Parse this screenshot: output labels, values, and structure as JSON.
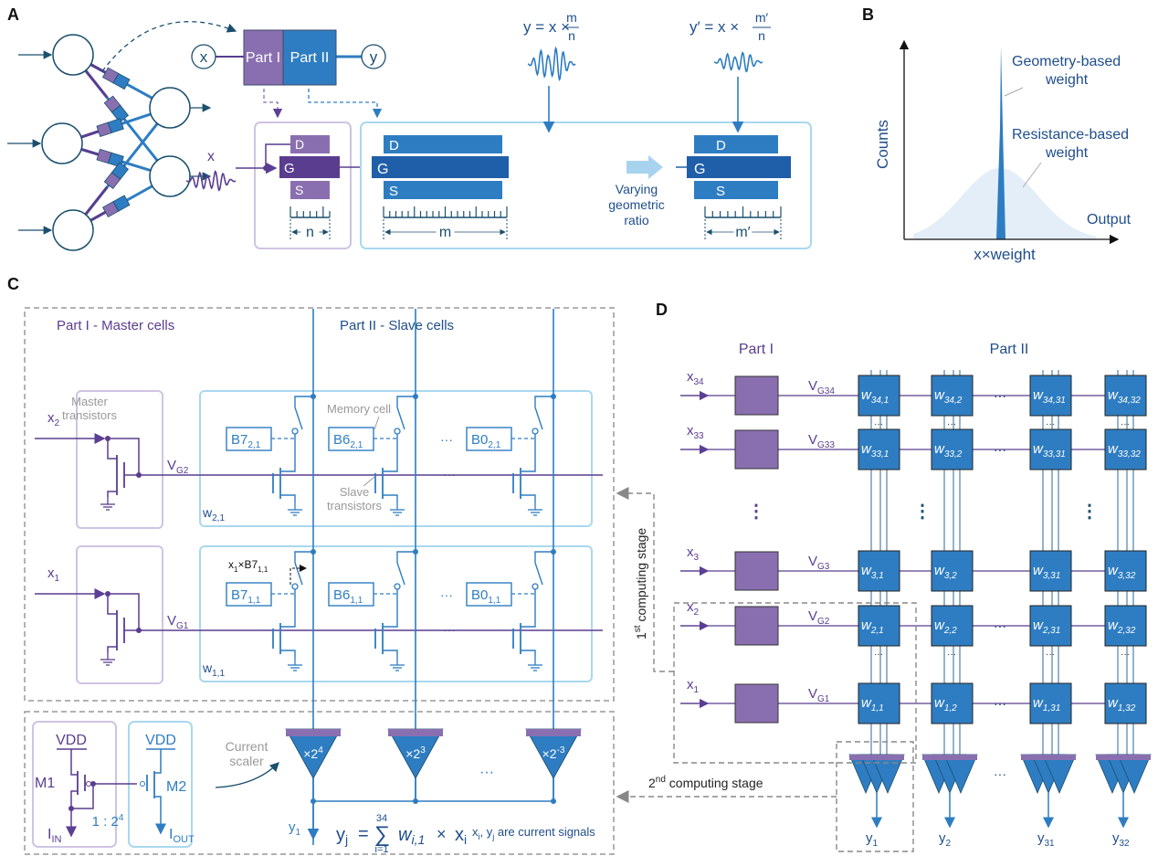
{
  "panel_labels": {
    "a": "A",
    "b": "B",
    "c": "C",
    "d": "D"
  },
  "colors": {
    "part1": "#8a6fb0",
    "part1_dark": "#5a3d8f",
    "part2": "#2e7dc2",
    "part2_dark": "#1f5ea8",
    "box_light_blue": "#a9d8ef",
    "box_light_purple": "#cfc4e3",
    "text_navy": "#1f4e8c"
  },
  "a": {
    "x": "x",
    "y": "y",
    "part1": "Part I",
    "part2": "Part II",
    "d": "D",
    "g": "G",
    "s": "S",
    "n": "n",
    "m": "m",
    "m_prime": "m′",
    "input_x": "x",
    "formula1": {
      "lhs": "y = x ×",
      "num": "m",
      "den": "n"
    },
    "formula2": {
      "lhs": "y′ = x ×",
      "num": "m′",
      "den": "n"
    },
    "varying": [
      "Varying",
      "geometric",
      "ratio"
    ]
  },
  "b": {
    "ylabel": "Counts",
    "xlabel": "x×weight",
    "geometry": [
      "Geometry-based",
      "weight"
    ],
    "resistance": [
      "Resistance-based",
      "weight"
    ],
    "output": "Output"
  },
  "c": {
    "part1_title": "Part I - Master cells",
    "part2_title": "Part II - Slave cells",
    "master_transistors": [
      "Master",
      "transistors"
    ],
    "memory_cell": "Memory cell",
    "slave_transistors": [
      "Slave",
      "transistors"
    ],
    "ellipsis": "···",
    "rows": [
      {
        "x": {
          "m": "x",
          "s": "2"
        },
        "vg": {
          "m": "V",
          "s": "G2"
        },
        "w": {
          "m": "w",
          "s": "2,1"
        },
        "cells": [
          {
            "m": "B7",
            "s": "2,1"
          },
          {
            "m": "B6",
            "s": "2,1"
          },
          {
            "m": "B0",
            "s": "2,1"
          }
        ]
      },
      {
        "x": {
          "m": "x",
          "s": "1"
        },
        "vg": {
          "m": "V",
          "s": "G1"
        },
        "w": {
          "m": "w",
          "s": "1,1"
        },
        "cells": [
          {
            "m": "B7",
            "s": "1,1"
          },
          {
            "m": "B6",
            "s": "1,1"
          },
          {
            "m": "B0",
            "s": "1,1"
          }
        ]
      }
    ],
    "annotation": {
      "m": "x",
      "s": "1",
      "m2": "×B7",
      "s2": "1,1"
    },
    "mirror": {
      "vdd": "VDD",
      "m1": "M1",
      "m2": "M2",
      "iin": {
        "m": "I",
        "s": "IN"
      },
      "iout": {
        "m": "I",
        "s": "OUT"
      },
      "ratio": {
        "m": "1 : 2",
        "sup": "4"
      }
    },
    "current_scaler": [
      "Current",
      "scaler"
    ],
    "scalers": [
      {
        "m": "×2",
        "sup": "4"
      },
      {
        "m": "×2",
        "sup": "3"
      },
      {
        "m": "×2",
        "sup": "-3"
      }
    ],
    "y1": {
      "m": "y",
      "s": "1"
    },
    "equation": {
      "lhs": "y",
      "lhs_sub": "j",
      "eq": "=",
      "sum": "∑",
      "top": "34",
      "bottom": "i=1",
      "w": "w",
      "w_sub": "i,1",
      "times": "×",
      "x": "x",
      "x_sub": "i"
    },
    "note": {
      "a": "x",
      "as": "i",
      "b": ", y",
      "bs": "j",
      "c": " are current signals"
    }
  },
  "d": {
    "part1": "Part I",
    "part2": "Part II",
    "rows": [
      {
        "x": {
          "m": "x",
          "s": "34"
        },
        "vg": {
          "m": "V",
          "s": "G34"
        },
        "w": [
          {
            "m": "w",
            "s": "34,1"
          },
          {
            "m": "w",
            "s": "34,2"
          },
          {
            "m": "w",
            "s": "34,31"
          },
          {
            "m": "w",
            "s": "34,32"
          }
        ]
      },
      {
        "x": {
          "m": "x",
          "s": "33"
        },
        "vg": {
          "m": "V",
          "s": "G33"
        },
        "w": [
          {
            "m": "w",
            "s": "33,1"
          },
          {
            "m": "w",
            "s": "33,2"
          },
          {
            "m": "w",
            "s": "33,31"
          },
          {
            "m": "w",
            "s": "33,32"
          }
        ]
      },
      {
        "x": {
          "m": "x",
          "s": "3"
        },
        "vg": {
          "m": "V",
          "s": "G3"
        },
        "w": [
          {
            "m": "w",
            "s": "3,1"
          },
          {
            "m": "w",
            "s": "3,2"
          },
          {
            "m": "w",
            "s": "3,31"
          },
          {
            "m": "w",
            "s": "3,32"
          }
        ]
      },
      {
        "x": {
          "m": "x",
          "s": "2"
        },
        "vg": {
          "m": "V",
          "s": "G2"
        },
        "w": [
          {
            "m": "w",
            "s": "2,1"
          },
          {
            "m": "w",
            "s": "2,2"
          },
          {
            "m": "w",
            "s": "2,31"
          },
          {
            "m": "w",
            "s": "2,32"
          }
        ]
      },
      {
        "x": {
          "m": "x",
          "s": "1"
        },
        "vg": {
          "m": "V",
          "s": "G1"
        },
        "w": [
          {
            "m": "w",
            "s": "1,1"
          },
          {
            "m": "w",
            "s": "1,2"
          },
          {
            "m": "w",
            "s": "1,31"
          },
          {
            "m": "w",
            "s": "1,32"
          }
        ]
      }
    ],
    "outputs": [
      {
        "m": "y",
        "s": "1"
      },
      {
        "m": "y",
        "s": "2"
      },
      {
        "m": "y",
        "s": "31"
      },
      {
        "m": "y",
        "s": "32"
      }
    ],
    "ellipsis": "···",
    "vdots": "⋮",
    "stage1": {
      "n": "1",
      "sup": "st",
      "text": " computing stage"
    },
    "stage2": {
      "n": "2",
      "sup": "nd",
      "text": " computing stage"
    }
  }
}
